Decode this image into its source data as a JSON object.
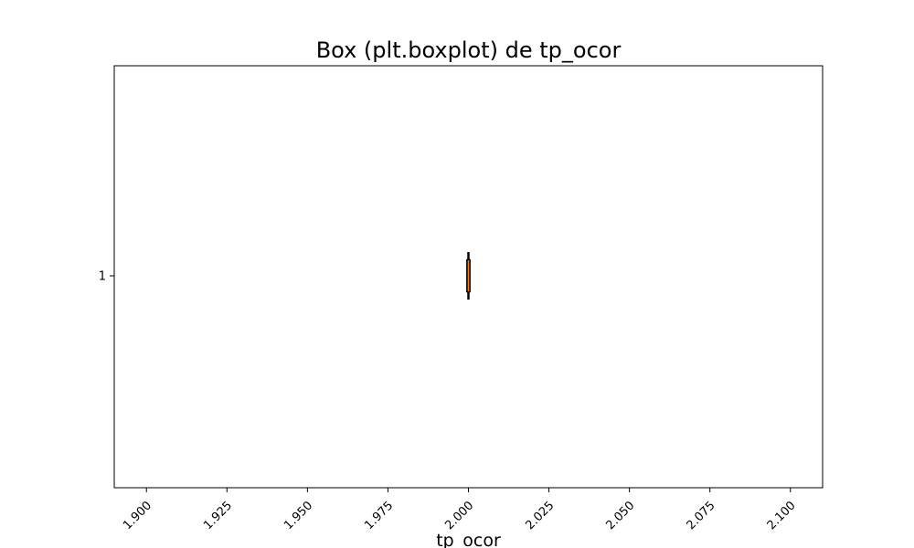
{
  "chart_data": {
    "type": "boxplot",
    "title": "Box (plt.boxplot) de tp_ocor",
    "xlabel": "tp_ocor",
    "ylabel": "",
    "orientation": "horizontal",
    "xlim": [
      1.89,
      2.11
    ],
    "xticks": [
      "1.900",
      "1.925",
      "1.950",
      "1.975",
      "2.000",
      "2.025",
      "2.050",
      "2.075",
      "2.100"
    ],
    "yticks": [
      "1"
    ],
    "boxes": [
      {
        "position": 1,
        "min": 2.0,
        "q1": 2.0,
        "median": 2.0,
        "q3": 2.0,
        "max": 2.0
      }
    ],
    "colors": {
      "box": "#000000",
      "median": "#ff7f0e",
      "axes": "#000000"
    },
    "grid": false,
    "legend": "none"
  }
}
